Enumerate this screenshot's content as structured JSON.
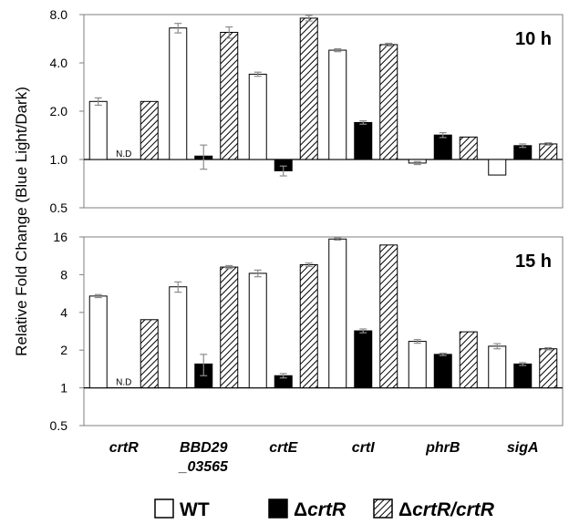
{
  "chart_data": {
    "type": "bar",
    "ylabel": "Relative Fold Change (Blue Light/Dark)",
    "y_scale": "log2",
    "categories": [
      [
        "crtR"
      ],
      [
        "BBD29",
        "_03565"
      ],
      [
        "crtE"
      ],
      [
        "crtI"
      ],
      [
        "phrB"
      ],
      [
        "sigA"
      ]
    ],
    "legend": {
      "placement": "bottom",
      "items": [
        {
          "prefix": "",
          "italic": "",
          "plain": "WT",
          "pattern": "white"
        },
        {
          "prefix": "Δ",
          "italic": "crtR",
          "plain": "",
          "pattern": "black"
        },
        {
          "prefix": "Δ",
          "italic": "crtR/crtR",
          "plain": "",
          "pattern": "hatched"
        }
      ]
    },
    "panels": [
      {
        "title": "10 h",
        "ylim": [
          0.5,
          8.0
        ],
        "yticks": [
          0.5,
          1.0,
          2.0,
          4.0,
          8.0
        ],
        "ytick_labels": [
          "0.5",
          "1.0",
          "2.0",
          "4.0",
          "8.0"
        ],
        "series": [
          {
            "name": "WT",
            "values": [
              2.3,
              6.6,
              3.4,
              4.8,
              0.95,
              0.8
            ],
            "errors": [
              0.12,
              0.45,
              0.1,
              0.1,
              0.02,
              0.0
            ]
          },
          {
            "name": "ΔcrtR",
            "values": [
              null,
              1.05,
              0.85,
              1.7,
              1.42,
              1.22
            ],
            "errors": [
              null,
              0.18,
              0.06,
              0.04,
              0.05,
              0.03
            ]
          },
          {
            "name": "ΔcrtR/crtR",
            "values": [
              2.3,
              6.2,
              7.6,
              5.2,
              1.38,
              1.25
            ],
            "errors": [
              0.0,
              0.5,
              0.3,
              0.1,
              0.0,
              0.02
            ]
          }
        ],
        "annotations": [
          {
            "category": 0,
            "series": 1,
            "text": "N.D"
          }
        ]
      },
      {
        "title": "15 h",
        "ylim": [
          0.5,
          16
        ],
        "yticks": [
          0.5,
          1,
          2,
          4,
          8,
          16
        ],
        "ytick_labels": [
          "0.5",
          "1",
          "2",
          "4",
          "8",
          "16"
        ],
        "series": [
          {
            "name": "WT",
            "values": [
              5.4,
              6.4,
              8.2,
              15.4,
              2.35,
              2.15
            ],
            "errors": [
              0.15,
              0.6,
              0.5,
              0.3,
              0.08,
              0.1
            ]
          },
          {
            "name": "ΔcrtR",
            "values": [
              null,
              1.55,
              1.25,
              2.85,
              1.85,
              1.55
            ],
            "errors": [
              null,
              0.3,
              0.05,
              0.1,
              0.04,
              0.04
            ]
          },
          {
            "name": "ΔcrtR/crtR",
            "values": [
              3.5,
              9.2,
              9.6,
              13.8,
              2.8,
              2.05
            ],
            "errors": [
              0.0,
              0.25,
              0.3,
              0.0,
              0.0,
              0.04
            ]
          }
        ],
        "annotations": [
          {
            "category": 0,
            "series": 1,
            "text": "N.D"
          }
        ]
      }
    ]
  }
}
